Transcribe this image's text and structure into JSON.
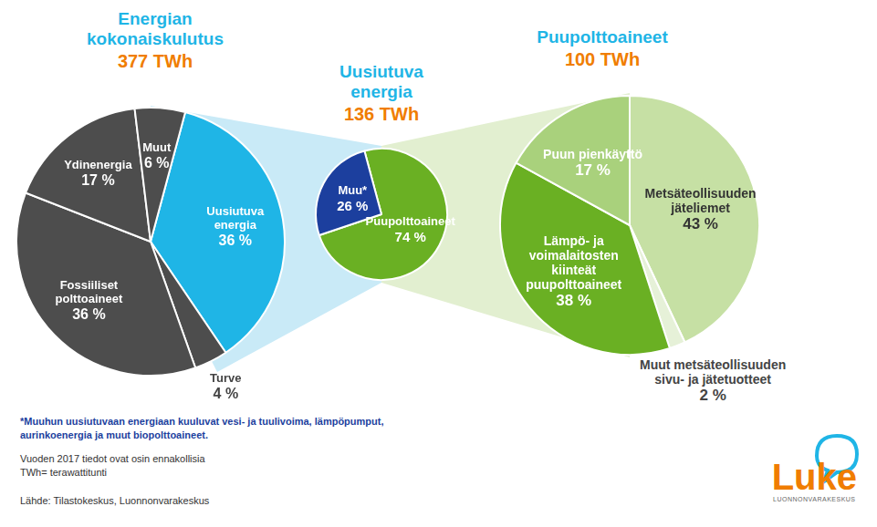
{
  "chart_data": [
    {
      "type": "pie",
      "title": "Energian kokonaiskulutus",
      "subtitle": "377 TWh",
      "categories": [
        "Uusiutuva energia",
        "Turve",
        "Fossiiliset polttoaineet",
        "Ydinenergia",
        "Muut"
      ],
      "values": [
        36,
        4,
        36,
        17,
        6
      ],
      "value_labels": [
        "36 %",
        "4 %",
        "36 %",
        "17 %",
        "6 %"
      ],
      "colors": [
        "#1fb5e6",
        "#4d4d4d",
        "#4d4d4d",
        "#4d4d4d",
        "#4d4d4d"
      ],
      "data_labels": true
    },
    {
      "type": "pie",
      "title": "Uusiutuva energia",
      "subtitle": "136 TWh",
      "categories": [
        "Puupolttoaineet",
        "Muu*"
      ],
      "values": [
        74,
        26
      ],
      "value_labels": [
        "74 %",
        "26 %"
      ],
      "colors": [
        "#6ab023",
        "#1c3f9e"
      ],
      "data_labels": true
    },
    {
      "type": "pie",
      "title": "Puupolttoaineet",
      "subtitle": "100 TWh",
      "categories": [
        "Metsäteollisuuden jäteliemet",
        "Muut metsäteollisuuden sivu- ja jätetuotteet",
        "Lämpö- ja voimalaitosten kiinteät puupolttoaineet",
        "Puun pienkäyttö"
      ],
      "values": [
        43,
        2,
        38,
        17
      ],
      "value_labels": [
        "43 %",
        "2 %",
        "38 %",
        "17 %"
      ],
      "colors": [
        "#c6e0a4",
        "#e6f1d8",
        "#6ab023",
        "#a9d17c"
      ],
      "data_labels": true
    }
  ],
  "notes": [
    "*Muuhun uusiutuvaan energiaan kuuluvat vesi- ja tuulivoima, lämpöpumput, aurinkoenergia ja muut biopolttoaineet.",
    "Vuoden 2017 tiedot ovat osin ennakollisia",
    "TWh= terawattitunti"
  ],
  "source": "Lähde: Tilastokeskus, Luonnonvarakeskus",
  "logo": {
    "text": "Luke",
    "subtitle": "LUONNONVARAKESKUS"
  }
}
